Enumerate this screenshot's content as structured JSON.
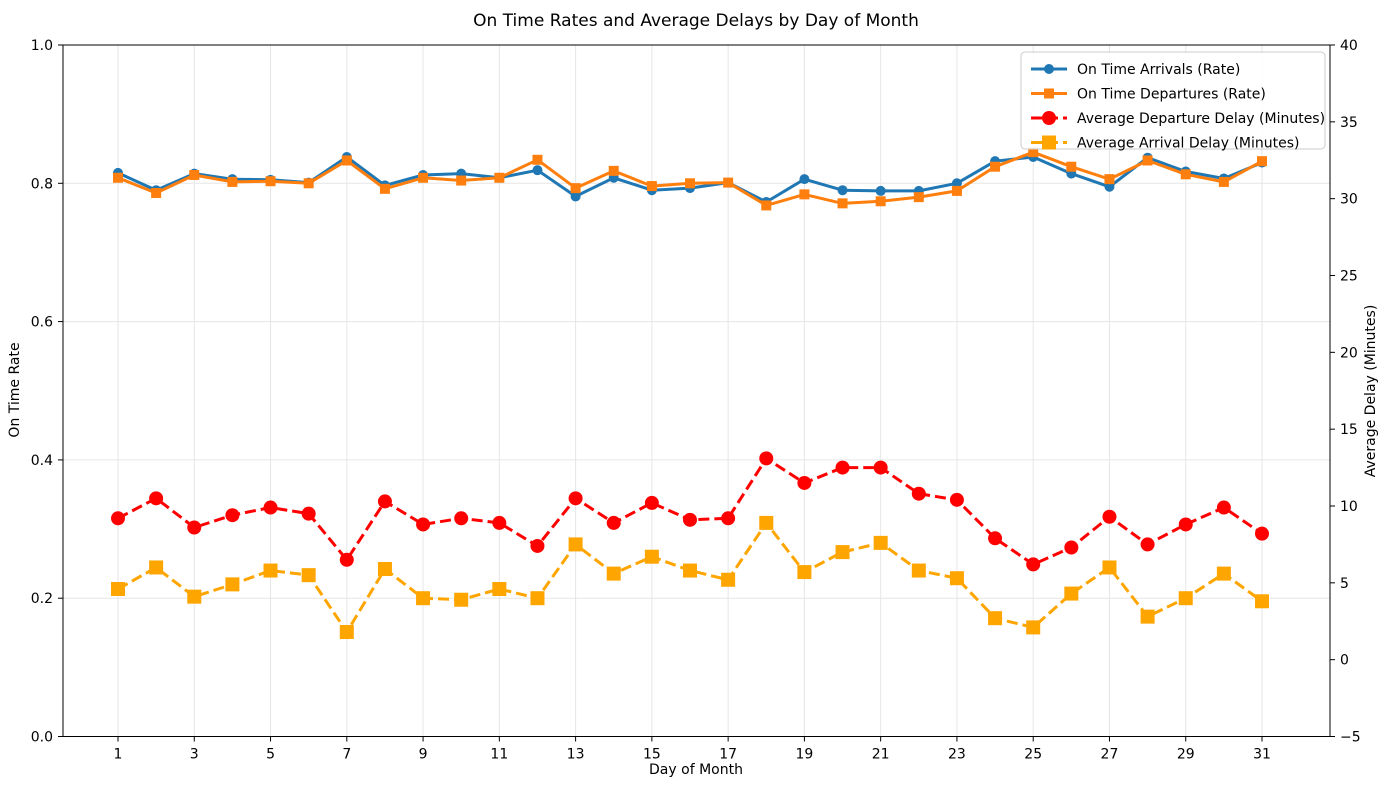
{
  "chart_data": {
    "type": "line",
    "title": "On Time Rates and Average Delays by Day of Month",
    "xlabel": "Day of Month",
    "ylabel_left": "On Time Rate",
    "ylabel_right": "Average Delay (Minutes)",
    "grid": true,
    "legend_position": "upper right",
    "ylim_left": [
      0.0,
      1.0
    ],
    "ylim_right": [
      -5,
      40
    ],
    "x": [
      1,
      2,
      3,
      4,
      5,
      6,
      7,
      8,
      9,
      10,
      11,
      12,
      13,
      14,
      15,
      16,
      17,
      18,
      19,
      20,
      21,
      22,
      23,
      24,
      25,
      26,
      27,
      28,
      29,
      30,
      31
    ],
    "x_ticks": {
      "values": [
        1,
        3,
        5,
        7,
        9,
        11,
        13,
        15,
        17,
        19,
        21,
        23,
        25,
        27,
        29,
        31
      ],
      "labels": [
        "1",
        "3",
        "5",
        "7",
        "9",
        "11",
        "13",
        "15",
        "17",
        "19",
        "21",
        "23",
        "25",
        "27",
        "29",
        "31"
      ]
    },
    "y_ticks_left": {
      "values": [
        0.0,
        0.2,
        0.4,
        0.6,
        0.8,
        1.0
      ],
      "labels": [
        "0.0",
        "0.2",
        "0.4",
        "0.6",
        "0.8",
        "1.0"
      ]
    },
    "y_ticks_right": {
      "values": [
        -5,
        0,
        5,
        10,
        15,
        20,
        25,
        30,
        35,
        40
      ],
      "labels": [
        "−5",
        "0",
        "5",
        "10",
        "15",
        "20",
        "25",
        "30",
        "35",
        "40"
      ]
    },
    "series": [
      {
        "id": "on-time-arrivals",
        "name": "On Time Arrivals (Rate)",
        "axis": "left",
        "color": "#1f77b4",
        "style": "solid",
        "marker": "circle",
        "values": [
          0.815,
          0.79,
          0.814,
          0.806,
          0.805,
          0.801,
          0.838,
          0.797,
          0.812,
          0.814,
          0.808,
          0.819,
          0.781,
          0.808,
          0.79,
          0.793,
          0.801,
          0.773,
          0.806,
          0.79,
          0.789,
          0.789,
          0.8,
          0.832,
          0.838,
          0.814,
          0.795,
          0.837,
          0.817,
          0.807,
          0.83
        ]
      },
      {
        "id": "on-time-departures",
        "name": "On Time Departures (Rate)",
        "axis": "left",
        "color": "#ff7f0e",
        "style": "solid",
        "marker": "square",
        "values": [
          0.808,
          0.786,
          0.812,
          0.802,
          0.803,
          0.8,
          0.833,
          0.792,
          0.808,
          0.804,
          0.808,
          0.834,
          0.793,
          0.818,
          0.796,
          0.8,
          0.801,
          0.768,
          0.784,
          0.771,
          0.774,
          0.78,
          0.789,
          0.824,
          0.845,
          0.824,
          0.806,
          0.833,
          0.813,
          0.802,
          0.832
        ]
      },
      {
        "id": "average-departure-delay",
        "name": "Average Departure Delay (Minutes)",
        "axis": "right",
        "color": "#ff0000",
        "style": "dashed",
        "marker": "circle",
        "values": [
          9.2,
          10.5,
          8.6,
          9.4,
          9.9,
          9.5,
          6.5,
          10.3,
          8.8,
          9.2,
          8.9,
          7.4,
          10.5,
          8.9,
          10.2,
          9.1,
          9.2,
          13.1,
          11.5,
          12.5,
          12.5,
          10.8,
          10.4,
          7.9,
          6.2,
          7.3,
          9.3,
          7.5,
          8.8,
          9.9,
          8.2
        ]
      },
      {
        "id": "average-arrival-delay",
        "name": "Average Arrival Delay (Minutes)",
        "axis": "right",
        "color": "#ffa500",
        "style": "dashed",
        "marker": "square",
        "values": [
          4.6,
          6.0,
          4.1,
          4.9,
          5.8,
          5.5,
          1.8,
          5.9,
          4.0,
          3.9,
          4.6,
          4.0,
          7.5,
          5.6,
          6.7,
          5.8,
          5.2,
          8.9,
          5.7,
          7.0,
          7.6,
          5.8,
          5.3,
          2.7,
          2.1,
          4.3,
          6.0,
          2.8,
          4.0,
          5.6,
          3.8
        ]
      }
    ]
  }
}
